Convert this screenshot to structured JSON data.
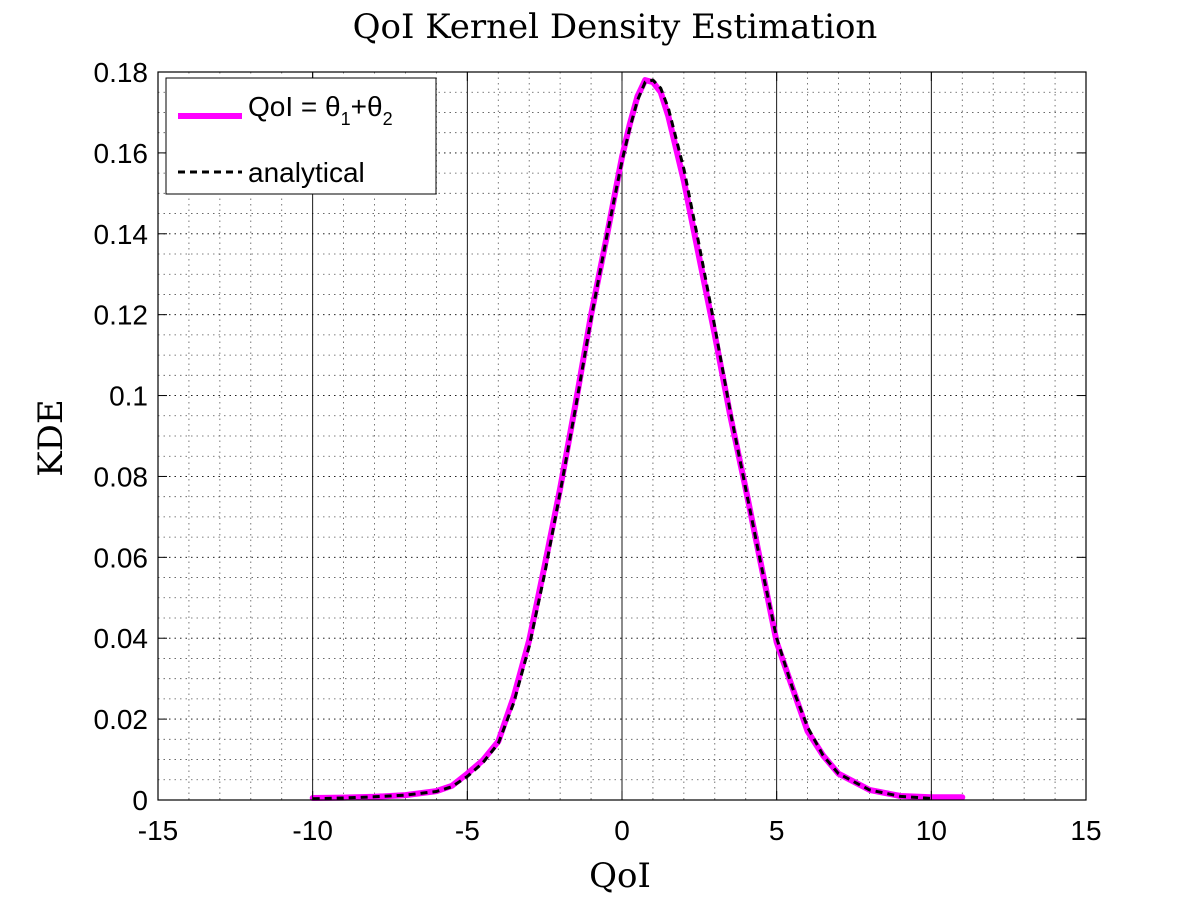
{
  "chart_data": {
    "type": "line",
    "title": "QoI Kernel Density Estimation",
    "xlabel": "QoI",
    "ylabel": "KDE",
    "xlim": [
      -15,
      15
    ],
    "ylim": [
      0,
      0.18
    ],
    "xticks": [
      "-15",
      "-10",
      "-5",
      "0",
      "5",
      "10",
      "15"
    ],
    "yticks": [
      "0",
      "0.02",
      "0.04",
      "0.06",
      "0.08",
      "0.1",
      "0.12",
      "0.14",
      "0.16",
      "0.18"
    ],
    "grid": true,
    "legend_position": "top-left",
    "legend_label_parts": [
      "QoI = ",
      "θ",
      "1",
      "+",
      "θ",
      "2"
    ],
    "series": [
      {
        "name": "QoI = θ1+θ2",
        "color": "#ff00ff",
        "style": "solid",
        "x": [
          -10,
          -9,
          -8,
          -7,
          -6,
          -5.5,
          -5,
          -4.5,
          -4,
          -3.5,
          -3,
          -2.5,
          -2,
          -1.5,
          -1,
          -0.5,
          0,
          0.25,
          0.5,
          0.75,
          1,
          1.25,
          1.5,
          2,
          2.5,
          3,
          3.5,
          4,
          4.5,
          5,
          5.5,
          6,
          6.5,
          7,
          8,
          9,
          10,
          11
        ],
        "y": [
          0.0005,
          0.0006,
          0.0008,
          0.0012,
          0.0022,
          0.0035,
          0.0065,
          0.0098,
          0.0145,
          0.0255,
          0.0395,
          0.058,
          0.077,
          0.098,
          0.12,
          0.139,
          0.159,
          0.167,
          0.174,
          0.178,
          0.1775,
          0.175,
          0.169,
          0.153,
          0.134,
          0.115,
          0.095,
          0.077,
          0.058,
          0.039,
          0.028,
          0.017,
          0.011,
          0.0065,
          0.0025,
          0.001,
          0.0007,
          0.0007
        ]
      },
      {
        "name": "analytical",
        "color": "#000000",
        "style": "dashed",
        "x": [
          -10,
          -9,
          -8,
          -7,
          -6,
          -5.5,
          -5,
          -4.5,
          -4,
          -3.5,
          -3,
          -2.5,
          -2,
          -1.5,
          -1,
          -0.5,
          0,
          0.25,
          0.5,
          0.75,
          1,
          1.25,
          1.5,
          2,
          2.5,
          3,
          3.5,
          4,
          4.5,
          5,
          5.5,
          6,
          6.5,
          7,
          8,
          9,
          10
        ],
        "y": [
          0.0003,
          0.0005,
          0.0008,
          0.0012,
          0.0021,
          0.0033,
          0.0058,
          0.0092,
          0.014,
          0.024,
          0.038,
          0.056,
          0.076,
          0.097,
          0.119,
          0.139,
          0.158,
          0.166,
          0.173,
          0.1775,
          0.178,
          0.176,
          0.171,
          0.156,
          0.137,
          0.117,
          0.096,
          0.077,
          0.058,
          0.04,
          0.028,
          0.018,
          0.011,
          0.0065,
          0.0025,
          0.0009,
          0.0004
        ]
      }
    ]
  }
}
